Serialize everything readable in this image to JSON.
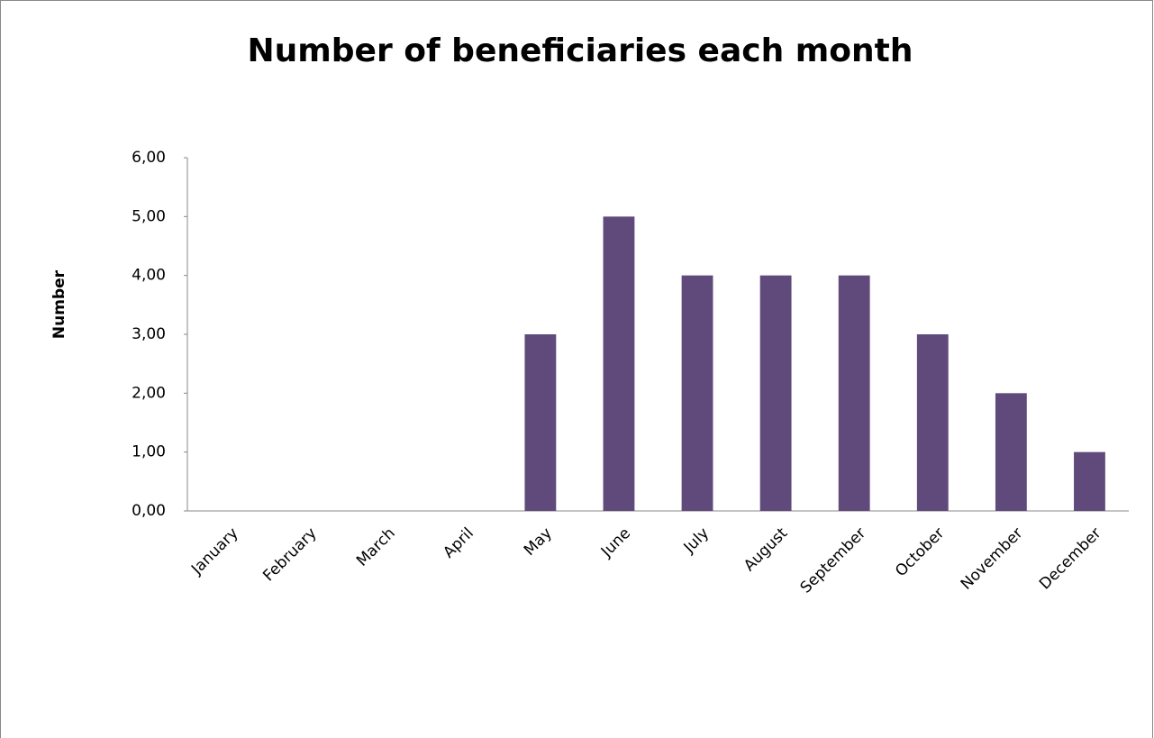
{
  "chart_data": {
    "type": "bar",
    "title": "Number of beneficiaries each month",
    "y_label": "Number",
    "categories": [
      "January",
      "February",
      "March",
      "April",
      "May",
      "June",
      "July",
      "August",
      "September",
      "October",
      "November",
      "December"
    ],
    "values": [
      0,
      0,
      0,
      0,
      3,
      5,
      4,
      4,
      4,
      3,
      2,
      1
    ],
    "color": "#604a7b",
    "ylim": [
      0,
      6
    ],
    "yticks": [
      {
        "value": 0,
        "label": "0,00"
      },
      {
        "value": 1,
        "label": "1,00"
      },
      {
        "value": 2,
        "label": "2,00"
      },
      {
        "value": 3,
        "label": "3,00"
      },
      {
        "value": 4,
        "label": "4,00"
      },
      {
        "value": 5,
        "label": "5,00"
      },
      {
        "value": 6,
        "label": "6,00"
      }
    ]
  }
}
